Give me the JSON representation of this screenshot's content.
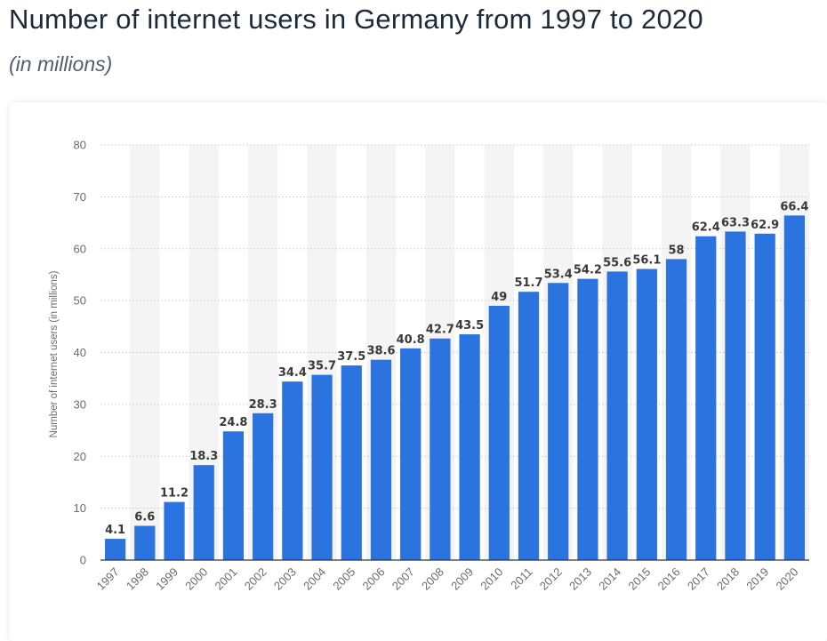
{
  "header": {
    "title": "Number of internet users in Germany from 1997 to 2020",
    "subtitle": "(in millions)"
  },
  "colors": {
    "bar": "#2b74df",
    "band": "#f4f4f4",
    "grid": "#c8c8c8",
    "axis": "#333333"
  },
  "chart_data": {
    "type": "bar",
    "title": "",
    "xlabel": "",
    "ylabel": "Number of internet users (in millions)",
    "ylim": [
      0,
      80
    ],
    "yticks": [
      0,
      10,
      20,
      30,
      40,
      50,
      60,
      70,
      80
    ],
    "grid": true,
    "categories": [
      "1997",
      "1998",
      "1999",
      "2000",
      "2001",
      "2002",
      "2003",
      "2004",
      "2005",
      "2006",
      "2007",
      "2008",
      "2009",
      "2010",
      "2011",
      "2012",
      "2013",
      "2014",
      "2015",
      "2016",
      "2017",
      "2018",
      "2019",
      "2020"
    ],
    "values": [
      4.1,
      6.6,
      11.2,
      18.3,
      24.8,
      28.3,
      34.4,
      35.7,
      37.5,
      38.6,
      40.8,
      42.7,
      43.5,
      49,
      51.7,
      53.4,
      54.2,
      55.6,
      56.1,
      58,
      62.4,
      63.3,
      62.9,
      66.4
    ],
    "value_labels": [
      "4.1",
      "6.6",
      "11.2",
      "18.3",
      "24.8",
      "28.3",
      "34.4",
      "35.7",
      "37.5",
      "38.6",
      "40.8",
      "42.7",
      "43.5",
      "49",
      "51.7",
      "53.4",
      "54.2",
      "55.6",
      "56.1",
      "58",
      "62.4",
      "63.3",
      "62.9",
      "66.4"
    ]
  }
}
